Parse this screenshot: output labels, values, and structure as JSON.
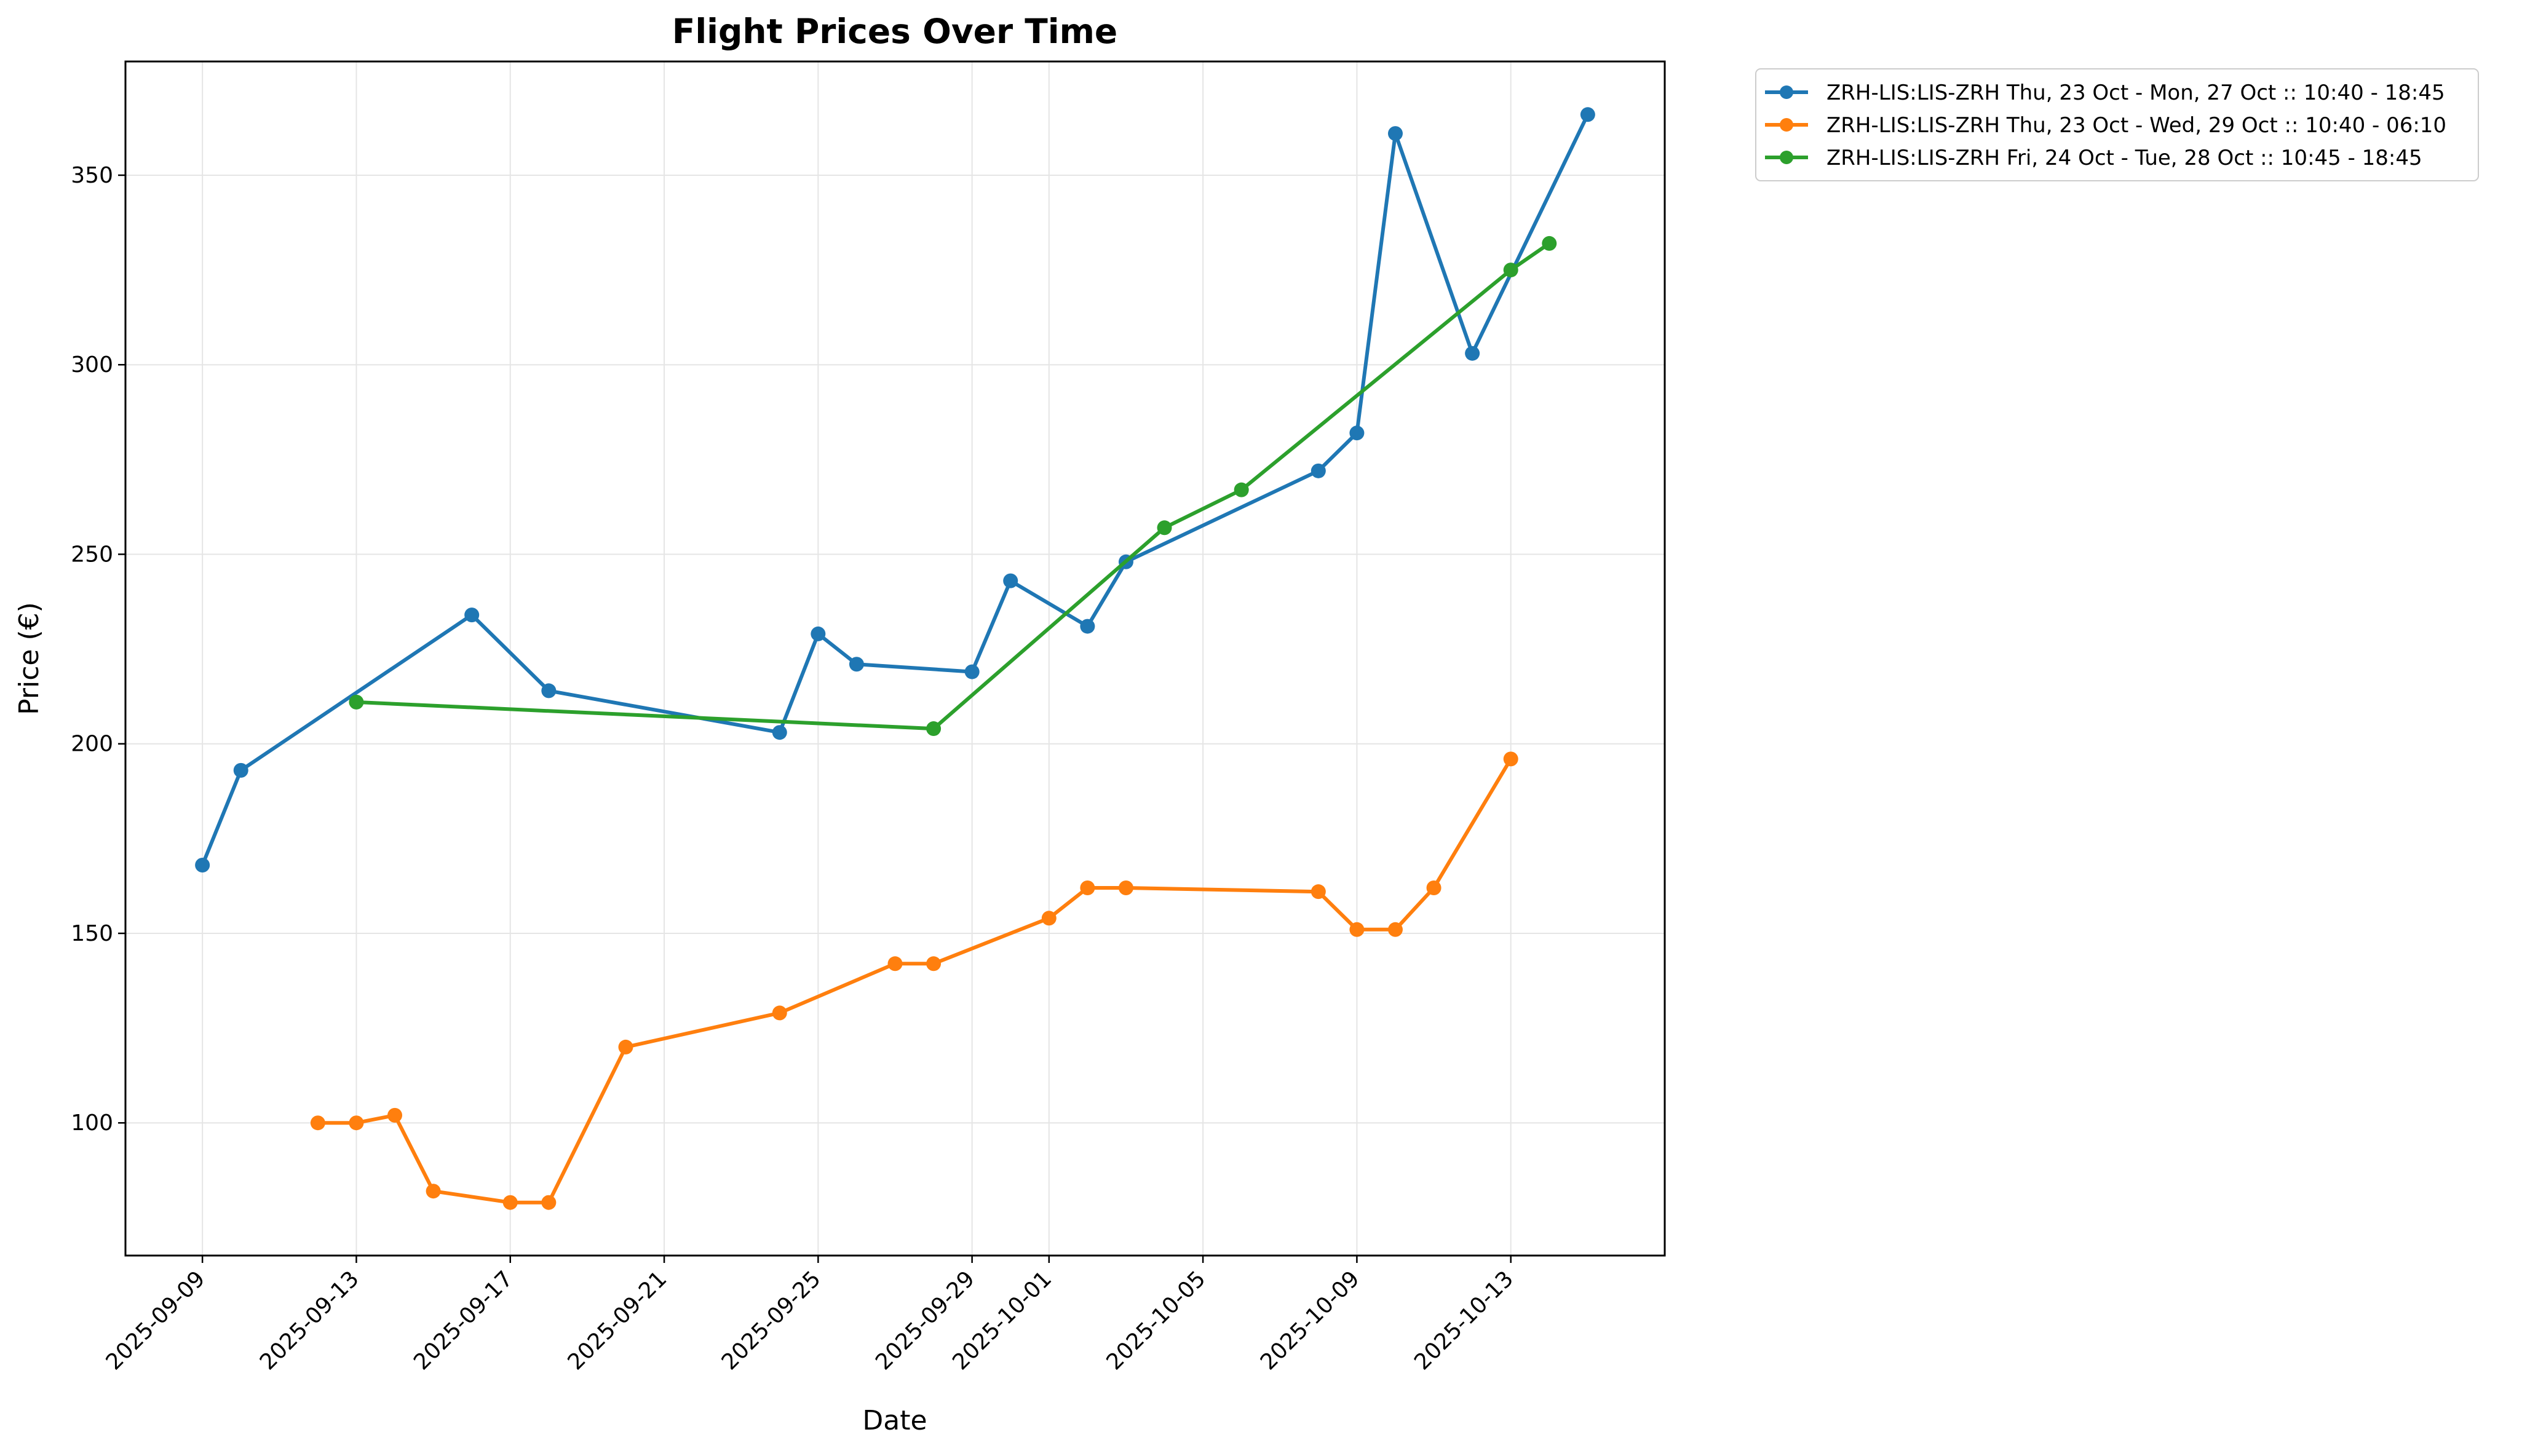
{
  "chart_data": {
    "type": "line",
    "title": "Flight Prices Over Time",
    "xlabel": "Date",
    "ylabel": "Price (€)",
    "x_type": "date",
    "xlim": [
      "2025-09-07",
      "2025-10-17"
    ],
    "ylim": [
      65,
      380
    ],
    "x_ticks": [
      "2025-09-09",
      "2025-09-13",
      "2025-09-17",
      "2025-09-21",
      "2025-09-25",
      "2025-09-29",
      "2025-10-01",
      "2025-10-05",
      "2025-10-09",
      "2025-10-13"
    ],
    "y_ticks": [
      100,
      150,
      200,
      250,
      300,
      350
    ],
    "grid": true,
    "legend_position": "outside-top-right",
    "series": [
      {
        "name": "ZRH-LIS:LIS-ZRH Thu, 23 Oct - Mon, 27 Oct :: 10:40 - 18:45",
        "color": "#1f77b4",
        "points": [
          {
            "x": "2025-09-09",
            "y": 168
          },
          {
            "x": "2025-09-10",
            "y": 193
          },
          {
            "x": "2025-09-16",
            "y": 234
          },
          {
            "x": "2025-09-18",
            "y": 214
          },
          {
            "x": "2025-09-24",
            "y": 203
          },
          {
            "x": "2025-09-25",
            "y": 229
          },
          {
            "x": "2025-09-26",
            "y": 221
          },
          {
            "x": "2025-09-29",
            "y": 219
          },
          {
            "x": "2025-09-30",
            "y": 243
          },
          {
            "x": "2025-10-02",
            "y": 231
          },
          {
            "x": "2025-10-03",
            "y": 248
          },
          {
            "x": "2025-10-08",
            "y": 272
          },
          {
            "x": "2025-10-09",
            "y": 282
          },
          {
            "x": "2025-10-10",
            "y": 361
          },
          {
            "x": "2025-10-12",
            "y": 303
          },
          {
            "x": "2025-10-15",
            "y": 366
          }
        ]
      },
      {
        "name": "ZRH-LIS:LIS-ZRH Thu, 23 Oct - Wed, 29 Oct :: 10:40 - 06:10",
        "color": "#ff7f0e",
        "points": [
          {
            "x": "2025-09-12",
            "y": 100
          },
          {
            "x": "2025-09-13",
            "y": 100
          },
          {
            "x": "2025-09-14",
            "y": 102
          },
          {
            "x": "2025-09-15",
            "y": 82
          },
          {
            "x": "2025-09-17",
            "y": 79
          },
          {
            "x": "2025-09-18",
            "y": 79
          },
          {
            "x": "2025-09-20",
            "y": 120
          },
          {
            "x": "2025-09-24",
            "y": 129
          },
          {
            "x": "2025-09-27",
            "y": 142
          },
          {
            "x": "2025-09-28",
            "y": 142
          },
          {
            "x": "2025-10-01",
            "y": 154
          },
          {
            "x": "2025-10-02",
            "y": 162
          },
          {
            "x": "2025-10-03",
            "y": 162
          },
          {
            "x": "2025-10-08",
            "y": 161
          },
          {
            "x": "2025-10-09",
            "y": 151
          },
          {
            "x": "2025-10-10",
            "y": 151
          },
          {
            "x": "2025-10-11",
            "y": 162
          },
          {
            "x": "2025-10-13",
            "y": 196
          }
        ]
      },
      {
        "name": "ZRH-LIS:LIS-ZRH Fri, 24 Oct - Tue, 28 Oct :: 10:45 - 18:45",
        "color": "#2ca02c",
        "points": [
          {
            "x": "2025-09-13",
            "y": 211
          },
          {
            "x": "2025-09-28",
            "y": 204
          },
          {
            "x": "2025-10-04",
            "y": 257
          },
          {
            "x": "2025-10-06",
            "y": 267
          },
          {
            "x": "2025-10-13",
            "y": 325
          },
          {
            "x": "2025-10-14",
            "y": 332
          }
        ]
      }
    ]
  }
}
